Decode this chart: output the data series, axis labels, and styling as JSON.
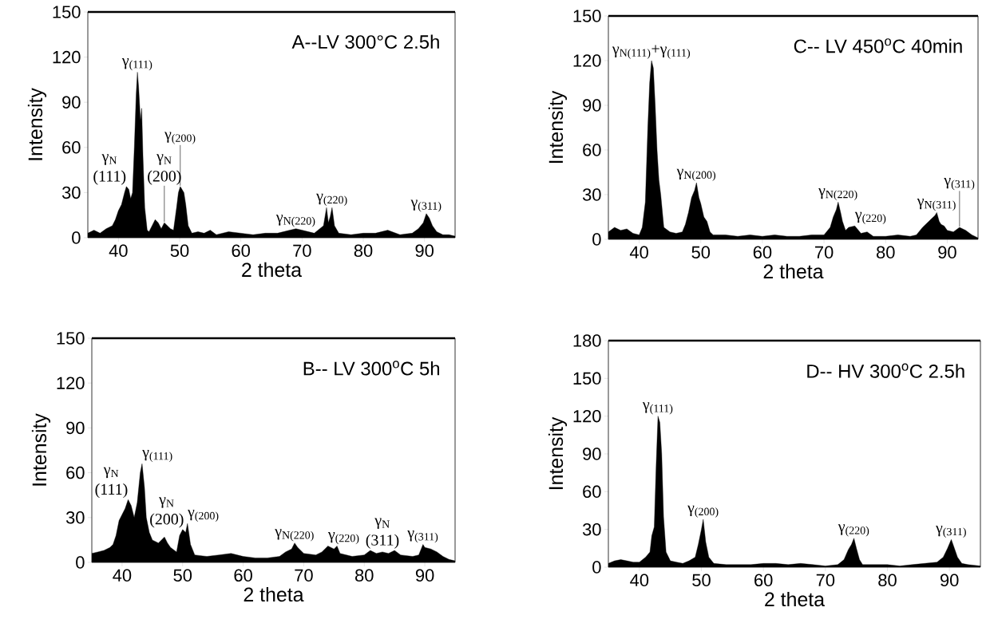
{
  "chart_data": [
    {
      "type": "area",
      "title": "A--LV 300°C 2.5h",
      "xlabel": "2 theta",
      "ylabel": "Intensity",
      "color": "#000000",
      "x": [
        35,
        36,
        37,
        38,
        39,
        39.5,
        40,
        40.5,
        41,
        41.3,
        41.7,
        42,
        42.3,
        42.6,
        42.9,
        43.1,
        43.3,
        43.6,
        43.8,
        44,
        44.3,
        44.7,
        45,
        45.5,
        46,
        46.5,
        47,
        47.5,
        48,
        48.5,
        49,
        49.5,
        49.8,
        50.1,
        50.4,
        50.7,
        51,
        51.4,
        52,
        53,
        54,
        55,
        56,
        57,
        58,
        60,
        62,
        64,
        66,
        68,
        69,
        70,
        72,
        73.5,
        74,
        74.3,
        74.6,
        74.9,
        75.3,
        76,
        78,
        80,
        82,
        84,
        86,
        88,
        89,
        89.8,
        90.3,
        90.8,
        91.3,
        92,
        93,
        94,
        95
      ],
      "values": [
        3,
        5,
        3,
        6,
        8,
        12,
        18,
        22,
        30,
        34,
        32,
        26,
        30,
        60,
        95,
        110,
        100,
        78,
        86,
        55,
        20,
        5,
        4,
        8,
        12,
        10,
        6,
        10,
        8,
        6,
        5,
        20,
        30,
        34,
        32,
        30,
        22,
        8,
        3,
        4,
        3,
        5,
        2,
        3,
        4,
        3,
        2,
        3,
        3,
        5,
        6,
        5,
        3,
        8,
        20,
        10,
        14,
        20,
        8,
        3,
        2,
        3,
        3,
        5,
        2,
        3,
        6,
        10,
        16,
        13,
        8,
        4,
        2,
        2,
        1
      ],
      "xlim": [
        35,
        95
      ],
      "ylim": [
        0,
        150
      ],
      "xticks": [
        40,
        50,
        60,
        70,
        80,
        90
      ],
      "yticks": [
        0,
        30,
        60,
        90,
        120,
        150
      ],
      "annotations": [
        {
          "text": "γ$_{(111)}$",
          "x": 43.1,
          "y": 110
        },
        "γ$_{N}$",
        {
          "text": "(111)",
          "x": 41.3,
          "y": 34
        },
        {
          "text": "γ$_{(200)}$",
          "x": 50.1,
          "y": 34
        },
        "γ$_{N}$",
        {
          "text": "(200)",
          "x": 47.5,
          "y": 10
        },
        {
          "text": "γ$_{N(220)}$",
          "x": 69,
          "y": 6
        },
        {
          "text": "γ$_{(220)}$",
          "x": 74.9,
          "y": 20
        },
        {
          "text": "γ$_{(311)}$",
          "x": 90.3,
          "y": 16
        }
      ]
    },
    {
      "type": "area",
      "title": "C-- LV 450$^{o}$C 40min",
      "xlabel": "2 theta",
      "ylabel": "Intensity",
      "color": "#000000",
      "x": [
        35,
        36,
        37,
        38,
        39,
        40,
        40.5,
        41,
        41.4,
        41.7,
        42,
        42.3,
        42.6,
        42.9,
        43.2,
        43.5,
        44,
        45,
        46,
        47,
        47.5,
        48,
        48.5,
        49,
        49.3,
        49.7,
        50,
        50.5,
        51,
        51.5,
        52,
        54,
        56,
        58,
        60,
        62,
        64,
        66,
        68,
        70,
        71,
        71.5,
        72,
        72.3,
        72.7,
        73,
        73.5,
        74,
        75,
        76,
        77,
        78,
        80,
        82,
        84,
        85,
        86,
        87,
        87.5,
        88,
        88.3,
        88.7,
        89,
        89.5,
        90,
        91,
        92,
        93,
        94,
        95
      ],
      "values": [
        5,
        8,
        6,
        7,
        4,
        3,
        8,
        25,
        75,
        105,
        120,
        115,
        90,
        60,
        40,
        30,
        8,
        5,
        4,
        5,
        10,
        18,
        28,
        33,
        38,
        28,
        24,
        15,
        12,
        5,
        3,
        3,
        2,
        3,
        2,
        3,
        2,
        2,
        3,
        3,
        8,
        15,
        20,
        25,
        18,
        12,
        6,
        8,
        9,
        4,
        5,
        2,
        2,
        3,
        2,
        3,
        8,
        12,
        14,
        16,
        18,
        12,
        10,
        9,
        6,
        5,
        8,
        6,
        3,
        1
      ],
      "xlim": [
        35,
        95
      ],
      "ylim": [
        0,
        150
      ],
      "xticks": [
        40,
        50,
        60,
        70,
        80,
        90
      ],
      "yticks": [
        0,
        30,
        60,
        90,
        120,
        150
      ],
      "annotations": [
        {
          "text": "γ$_{N(111)}$+γ$_{(111)}$",
          "x": 42,
          "y": 120
        },
        {
          "text": "γ$_{N(200)}$",
          "x": 49.3,
          "y": 38
        },
        {
          "text": "γ$_{N(220)}$",
          "x": 72.3,
          "y": 25
        },
        {
          "text": "γ$_{(220)}$",
          "x": 75,
          "y": 9
        },
        {
          "text": "γ$_{N(311)}$",
          "x": 88.3,
          "y": 18
        },
        {
          "text": "γ$_{(311)}$",
          "x": 92,
          "y": 8
        }
      ]
    },
    {
      "type": "area",
      "title": "B-- LV 300$^{o}$C 5h",
      "xlabel": "2 theta",
      "ylabel": "Intensity",
      "color": "#000000",
      "x": [
        35,
        36,
        37,
        38,
        38.5,
        39,
        39.5,
        40,
        40.5,
        41,
        41.5,
        42,
        42.5,
        43,
        43.3,
        43.7,
        44,
        44.5,
        45,
        46,
        46.5,
        47,
        47.5,
        48,
        49,
        49.5,
        50,
        50.5,
        50.8,
        51.3,
        52,
        54,
        56,
        58,
        60,
        62,
        64,
        66,
        67,
        68,
        68.5,
        69,
        70,
        72,
        73,
        74,
        75,
        75.5,
        76,
        78,
        80,
        81,
        82,
        83,
        84,
        85,
        86,
        88,
        89,
        89.7,
        90,
        91,
        92,
        93,
        94,
        95
      ],
      "values": [
        6,
        7,
        8,
        10,
        12,
        18,
        28,
        32,
        36,
        42,
        38,
        30,
        40,
        60,
        66,
        50,
        30,
        20,
        15,
        13,
        15,
        17,
        13,
        10,
        7,
        18,
        22,
        20,
        26,
        12,
        5,
        4,
        5,
        6,
        4,
        3,
        3,
        4,
        7,
        9,
        13,
        10,
        6,
        5,
        7,
        11,
        9,
        11,
        6,
        4,
        5,
        8,
        6,
        7,
        6,
        8,
        5,
        4,
        5,
        12,
        10,
        9,
        7,
        4,
        2,
        1
      ],
      "xlim": [
        35,
        95
      ],
      "ylim": [
        0,
        150
      ],
      "xticks": [
        40,
        50,
        60,
        70,
        80,
        90
      ],
      "yticks": [
        0,
        30,
        60,
        90,
        120,
        150
      ],
      "annotations": [
        {
          "text": "γ$_{(111)}$",
          "x": 43.3,
          "y": 66
        },
        "γ$_{N}$",
        {
          "text": "(111)",
          "x": 41,
          "y": 42
        },
        {
          "text": "γ$_{(200)}$",
          "x": 50.8,
          "y": 26
        },
        "γ$_{N}$",
        {
          "text": "(200)",
          "x": 44.5,
          "y": 20
        },
        {
          "text": "γ$_{N(220)}$",
          "x": 68.5,
          "y": 13
        },
        {
          "text": "γ$_{(220)}$",
          "x": 74,
          "y": 11
        },
        "γ$_{N}$",
        {
          "text": "(311)",
          "x": 83,
          "y": 7
        },
        {
          "text": "γ$_{(311)}$",
          "x": 89.7,
          "y": 12
        }
      ]
    },
    {
      "type": "area",
      "title": "D-- HV 300$^{o}$C 2.5h",
      "xlabel": "2 theta",
      "ylabel": "Intensity",
      "color": "#000000",
      "x": [
        35,
        36,
        37,
        38,
        39,
        40,
        41,
        41.7,
        42,
        42.4,
        42.7,
        43,
        43.3,
        43.6,
        43.9,
        44.3,
        45,
        46,
        47,
        48,
        49,
        49.5,
        50,
        50.3,
        50.7,
        51.2,
        52,
        54,
        56,
        58,
        60,
        62,
        64,
        66,
        68,
        70,
        72,
        73,
        73.7,
        74.2,
        74.6,
        75,
        75.5,
        76,
        78,
        80,
        82,
        84,
        86,
        88,
        89,
        89.7,
        90.3,
        90.8,
        91.3,
        92,
        93,
        95
      ],
      "values": [
        3,
        5,
        6,
        5,
        4,
        4,
        8,
        12,
        25,
        32,
        80,
        120,
        115,
        90,
        40,
        12,
        5,
        4,
        3,
        5,
        8,
        18,
        30,
        38,
        20,
        8,
        3,
        2,
        2,
        2,
        3,
        3,
        2,
        3,
        2,
        1,
        2,
        6,
        14,
        18,
        23,
        15,
        6,
        2,
        2,
        2,
        1,
        2,
        3,
        4,
        8,
        15,
        22,
        15,
        8,
        3,
        2,
        1
      ],
      "xlim": [
        35,
        95
      ],
      "ylim": [
        0,
        180
      ],
      "xticks": [
        40,
        50,
        60,
        70,
        80,
        90
      ],
      "yticks": [
        0,
        30,
        60,
        90,
        120,
        150,
        180
      ],
      "annotations": [
        {
          "text": "γ$_{(111)}$",
          "x": 43,
          "y": 120
        },
        {
          "text": "γ$_{(200)}$",
          "x": 50.3,
          "y": 38
        },
        {
          "text": "γ$_{(220)}$",
          "x": 74.6,
          "y": 23
        },
        {
          "text": "γ$_{(311)}$",
          "x": 90.3,
          "y": 22
        }
      ]
    }
  ]
}
